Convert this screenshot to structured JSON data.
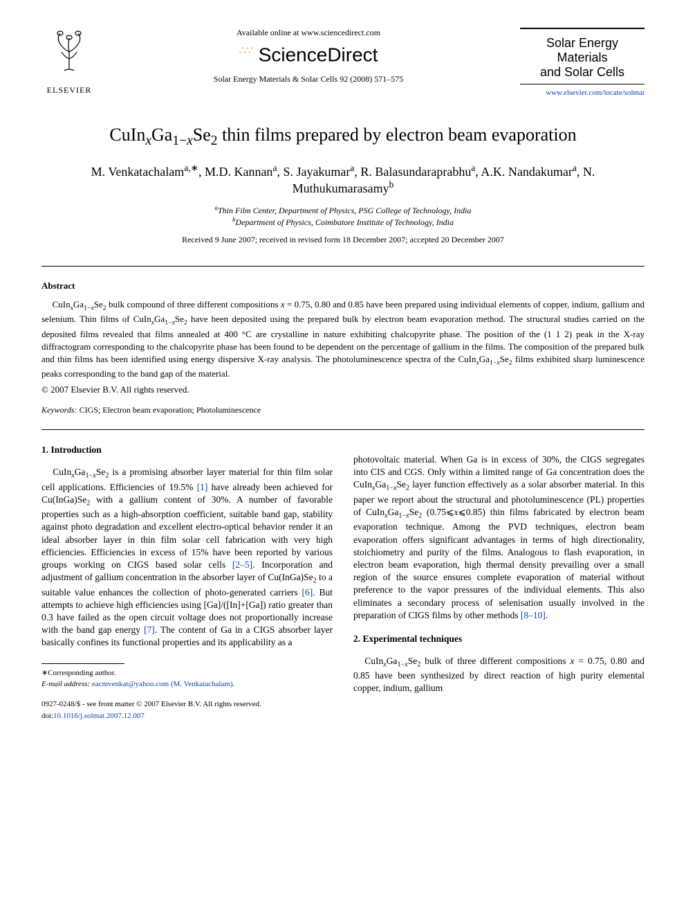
{
  "header": {
    "publisher_logo": "ELSEVIER",
    "available_online": "Available online at www.sciencedirect.com",
    "sciencedirect": "ScienceDirect",
    "citation": "Solar Energy Materials & Solar Cells 92 (2008) 571–575",
    "journal_title_line1": "Solar Energy Materials",
    "journal_title_line2": "and Solar Cells",
    "journal_url": "www.elsevier.com/locate/solmat"
  },
  "article": {
    "title_html": "CuIn<sub><i>x</i></sub>Ga<sub>1−<i>x</i></sub>Se<sub>2</sub> thin films prepared by electron beam evaporation",
    "authors_html": "M. Venkatachalam<sup>a,∗</sup>, M.D. Kannan<sup>a</sup>, S. Jayakumar<sup>a</sup>, R. Balasundaraprabhu<sup>a</sup>, A.K. Nandakumar<sup>a</sup>, N. Muthukumarasamy<sup>b</sup>",
    "affiliation_a": "Thin Film Center, Department of Physics, PSG College of Technology, India",
    "affiliation_b": "Department of Physics, Coimbatore Institute of Technology, India",
    "dates": "Received 9 June 2007; received in revised form 18 December 2007; accepted 20 December 2007"
  },
  "abstract": {
    "heading": "Abstract",
    "text_html": "CuIn<sub><i>x</i></sub>Ga<sub>1−<i>x</i></sub>Se<sub>2</sub> bulk compound of three different compositions <i>x</i> = 0.75, 0.80 and 0.85 have been prepared using individual elements of copper, indium, gallium and selenium. Thin films of CuIn<sub><i>x</i></sub>Ga<sub>1−<i>x</i></sub>Se<sub>2</sub> have been deposited using the prepared bulk by electron beam evaporation method. The structural studies carried on the deposited films revealed that films annealed at 400 °C are crystalline in nature exhibiting chalcopyrite phase. The position of the (1 1 2) peak in the X-ray diffractogram corresponding to the chalcopyrite phase has been found to be dependent on the percentage of gallium in the films. The composition of the prepared bulk and thin films has been identified using energy dispersive X-ray analysis. The photoluminescence spectra of the CuIn<sub><i>x</i></sub>Ga<sub>1−<i>x</i></sub>Se<sub>2</sub> films exhibited sharp luminescence peaks corresponding to the band gap of the material.",
    "copyright": "© 2007 Elsevier B.V. All rights reserved.",
    "keywords_label": "Keywords:",
    "keywords": "CIGS; Electron beam evaporation; Photoluminescence"
  },
  "body": {
    "section1_heading": "1.  Introduction",
    "col1_p1_html": "CuIn<sub><i>x</i></sub>Ga<sub>1−<i>x</i></sub>Se<sub>2</sub> is a promising absorber layer material for thin film solar cell applications. Efficiencies of 19.5% <span class='link'>[1]</span> have already been achieved for Cu(InGa)Se<sub>2</sub> with a gallium content of 30%. A number of favorable properties such as a high-absorption coefficient, suitable band gap, stability against photo degradation and excellent electro-optical behavior render it an ideal absorber layer in thin film solar cell fabrication with very high efficiencies. Efficiencies in excess of 15% have been reported by various groups working on CIGS based solar cells <span class='link'>[2–5]</span>. Incorporation and adjustment of gallium concentration in the absorber layer of Cu(InGa)Se<sub>2</sub> to a suitable value enhances the collection of photo-generated carriers <span class='link'>[6]</span>. But attempts to achieve high efficiencies using [Ga]/([In]+[Ga]) ratio greater than 0.3 have failed as the open circuit voltage does not proportionally increase with the band gap energy <span class='link'>[7]</span>. The content of Ga in a CIGS absorber layer basically confines its functional properties and its applicability as a",
    "col2_p1_html": "photovoltaic material. When Ga is in excess of 30%, the CIGS segregates into CIS and CGS. Only within a limited range of Ga concentration does the CuIn<sub><i>x</i></sub>Ga<sub>1−<i>x</i></sub>Se<sub>2</sub> layer function effectively as a solar absorber material. In this paper we report about the structural and photoluminescence (PL) properties of CuIn<sub><i>x</i></sub>Ga<sub>1−<i>x</i></sub>Se<sub>2</sub> (0.75⩽<i>x</i>⩽0.85) thin films fabricated by electron beam evaporation technique. Among the PVD techniques, electron beam evaporation offers significant advantages in terms of high directionality, stoichiometry and purity of the films. Analogous to flash evaporation, in electron beam evaporation, high thermal density prevailing over a small region of the source ensures complete evaporation of material without preference to the vapor pressures of the individual elements. This also eliminates a secondary process of selenisation usually involved in the preparation of CIGS films by other methods <span class='link'>[8–10]</span>.",
    "section2_heading": "2.  Experimental techniques",
    "col2_p2_html": "CuIn<sub><i>x</i></sub>Ga<sub>1−<i>x</i></sub>Se<sub>2</sub> bulk of three different compositions <i>x</i> = 0.75, 0.80 and 0.85 have been synthesized by direct reaction of high purity elemental copper, indium, gallium"
  },
  "footnotes": {
    "corresponding": "∗Corresponding author.",
    "email_label": "E-mail address:",
    "email": "eacmvenkat@yahoo.com (M. Venkatachalam).",
    "issn": "0927-0248/$ - see front matter © 2007 Elsevier B.V. All rights reserved.",
    "doi_label": "doi:",
    "doi": "10.1016/j.solmat.2007.12.007"
  },
  "style": {
    "link_color": "#0645ad",
    "body_font": "Times New Roman",
    "title_fontsize": 26,
    "body_fontsize": 13.5,
    "abstract_fontsize": 13,
    "background": "#ffffff"
  }
}
